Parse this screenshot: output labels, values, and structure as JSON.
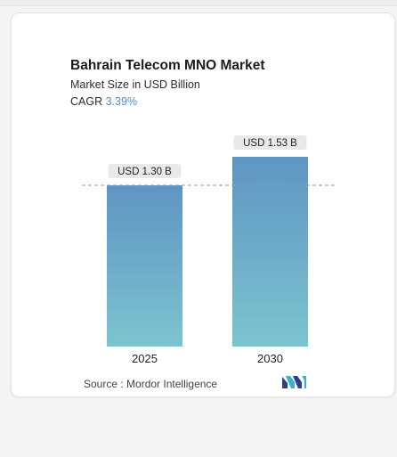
{
  "header": {
    "title": "Bahrain Telecom MNO Market",
    "subtitle": "Market Size in USD Billion",
    "cagr_label": "CAGR",
    "cagr_value": "3.39%"
  },
  "chart_data": {
    "type": "bar",
    "categories": [
      "2025",
      "2030"
    ],
    "values": [
      1.3,
      1.53
    ],
    "value_labels": [
      "USD 1.30 B",
      "USD 1.53 B"
    ],
    "title": "Bahrain Telecom MNO Market",
    "subtitle": "Market Size in USD Billion",
    "ylabel": "",
    "xlabel": "",
    "ylim": [
      0,
      1.53
    ],
    "grid": false,
    "reference_line": 1.3,
    "colors": {
      "bar_top": "#5f95c3",
      "bar_bottom": "#7cc4cf",
      "accent": "#4f8fc5",
      "label_bg": "#e9e9e9"
    }
  },
  "footer": {
    "source_label": "Source :",
    "source_name": "Mordor Intelligence",
    "logo_icon": "mordor-intelligence-logo"
  }
}
